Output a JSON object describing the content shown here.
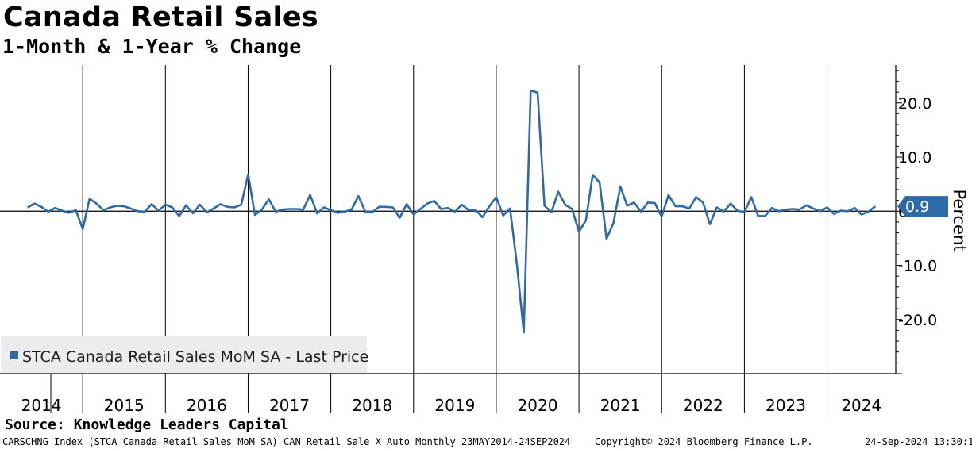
{
  "header": {
    "title": "Canada Retail Sales",
    "subtitle": "1-Month & 1-Year % Change"
  },
  "footer": {
    "source": "Source: Knowledge Leaders Capital",
    "index_info": "CARSCHNG Index (STCA Canada Retail Sales MoM SA) CAN Retail Sale X Auto  Monthly 23MAY2014-24SEP2024",
    "copyright": "Copyright© 2024 Bloomberg Finance L.P.",
    "timestamp": "24-Sep-2024 13:30:17"
  },
  "colors": {
    "series": "#2e6aa7",
    "last_price_box": "#2e6aa7",
    "legend_bg": "#ececec"
  },
  "chart_data": {
    "type": "line",
    "title": "Canada Retail Sales",
    "subtitle": "1-Month & 1-Year % Change",
    "ylabel": "Percent",
    "ylim": [
      -30,
      27
    ],
    "yticks": [
      20,
      10,
      0,
      -10,
      -20
    ],
    "ytick_labels": [
      "20.0",
      "10.0",
      "0.0",
      "-10.0",
      "-20.0"
    ],
    "y_axis_side": "right",
    "grid": "vertical lines at year boundaries, horizontal line at 0",
    "xlim": [
      2014.0,
      2024.83
    ],
    "x_categories": [
      "2014",
      "2015",
      "2016",
      "2017",
      "2018",
      "2019",
      "2020",
      "2021",
      "2022",
      "2023",
      "2024"
    ],
    "last_price": {
      "value": 0.9,
      "label": "0.9"
    },
    "legend": {
      "position": "bottom-left",
      "entries": [
        "STCA Canada Retail Sales MoM SA - Last Price"
      ]
    },
    "series": [
      {
        "name": "STCA Canada Retail Sales MoM SA - Last Price",
        "start": "2014-05",
        "frequency": "monthly",
        "values": [
          0.7,
          1.4,
          0.8,
          -0.1,
          0.6,
          0.1,
          -0.3,
          0.2,
          -3.3,
          2.3,
          1.4,
          0.2,
          0.7,
          1.0,
          0.9,
          0.5,
          0.0,
          -0.1,
          1.3,
          0.1,
          1.2,
          0.7,
          -0.9,
          1.1,
          -0.4,
          1.2,
          -0.2,
          0.5,
          1.3,
          0.8,
          0.7,
          1.2,
          6.8,
          -0.7,
          0.3,
          2.2,
          -0.1,
          0.3,
          0.4,
          0.4,
          0.3,
          3.0,
          -0.4,
          0.7,
          0.2,
          -0.3,
          -0.1,
          0.3,
          2.8,
          -0.1,
          -0.2,
          0.8,
          0.8,
          0.7,
          -1.2,
          1.3,
          -0.6,
          0.4,
          1.4,
          1.9,
          0.4,
          0.6,
          -0.1,
          1.2,
          0.2,
          0.2,
          -1.1,
          0.9,
          2.6,
          -0.8,
          0.5,
          -9.9,
          -22.4,
          22.3,
          21.9,
          1.0,
          -0.2,
          3.6,
          1.2,
          0.4,
          -3.8,
          -1.7,
          6.7,
          5.3,
          -5.1,
          -2.2,
          4.6,
          1.0,
          1.6,
          -0.1,
          1.6,
          1.5,
          -1.0,
          3.0,
          0.9,
          0.9,
          0.5,
          2.6,
          1.6,
          -2.4,
          0.7,
          -0.1,
          1.4,
          0.1,
          -0.2,
          2.6,
          -0.9,
          -0.9,
          0.6,
          0.0,
          0.3,
          0.4,
          0.3,
          1.1,
          0.5,
          0.0,
          0.7,
          -0.5,
          0.1,
          0.0,
          0.6,
          -0.6,
          -0.1,
          0.9
        ]
      }
    ]
  }
}
